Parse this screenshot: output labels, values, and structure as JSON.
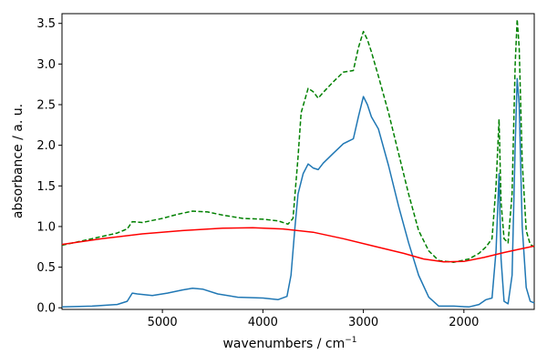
{
  "chart_data": {
    "type": "line",
    "xlabel": "wavenumbers / cm",
    "xlabel_superscript": "−1",
    "ylabel": "absorbance / a. u.",
    "xlim": [
      5999,
      1300
    ],
    "ylim": [
      -0.02,
      3.62
    ],
    "x_reversed": true,
    "x_ticks": [
      5000,
      4000,
      3000,
      2000
    ],
    "y_ticks": [
      0.0,
      0.5,
      1.0,
      1.5,
      2.0,
      2.5,
      3.0,
      3.5
    ],
    "y_tick_labels": [
      "0.0",
      "0.5",
      "1.0",
      "1.5",
      "2.0",
      "2.5",
      "3.0",
      "3.5"
    ],
    "grid": false,
    "series": [
      {
        "color": "#1f77b4",
        "style": "solid",
        "points": [
          [
            5999,
            0.01
          ],
          [
            5700,
            0.02
          ],
          [
            5450,
            0.04
          ],
          [
            5350,
            0.08
          ],
          [
            5300,
            0.18
          ],
          [
            5250,
            0.17
          ],
          [
            5100,
            0.15
          ],
          [
            4950,
            0.18
          ],
          [
            4800,
            0.22
          ],
          [
            4700,
            0.24
          ],
          [
            4600,
            0.23
          ],
          [
            4450,
            0.17
          ],
          [
            4250,
            0.13
          ],
          [
            4000,
            0.12
          ],
          [
            3850,
            0.1
          ],
          [
            3760,
            0.14
          ],
          [
            3720,
            0.4
          ],
          [
            3680,
            1.0
          ],
          [
            3650,
            1.4
          ],
          [
            3600,
            1.65
          ],
          [
            3550,
            1.77
          ],
          [
            3500,
            1.72
          ],
          [
            3450,
            1.7
          ],
          [
            3400,
            1.78
          ],
          [
            3300,
            1.9
          ],
          [
            3200,
            2.02
          ],
          [
            3100,
            2.08
          ],
          [
            3050,
            2.35
          ],
          [
            3000,
            2.6
          ],
          [
            2960,
            2.5
          ],
          [
            2920,
            2.35
          ],
          [
            2850,
            2.2
          ],
          [
            2750,
            1.75
          ],
          [
            2650,
            1.25
          ],
          [
            2550,
            0.8
          ],
          [
            2450,
            0.4
          ],
          [
            2350,
            0.13
          ],
          [
            2250,
            0.02
          ],
          [
            2100,
            0.02
          ],
          [
            1950,
            0.01
          ],
          [
            1850,
            0.04
          ],
          [
            1780,
            0.1
          ],
          [
            1720,
            0.12
          ],
          [
            1680,
            0.7
          ],
          [
            1650,
            1.65
          ],
          [
            1630,
            0.6
          ],
          [
            1600,
            0.08
          ],
          [
            1560,
            0.05
          ],
          [
            1520,
            0.4
          ],
          [
            1490,
            2.0
          ],
          [
            1470,
            2.82
          ],
          [
            1450,
            2.5
          ],
          [
            1420,
            1.0
          ],
          [
            1380,
            0.25
          ],
          [
            1340,
            0.08
          ],
          [
            1300,
            0.06
          ]
        ]
      },
      {
        "color": "#008000",
        "style": "dashed",
        "points": [
          [
            5999,
            0.77
          ],
          [
            5700,
            0.85
          ],
          [
            5450,
            0.92
          ],
          [
            5350,
            0.97
          ],
          [
            5300,
            1.06
          ],
          [
            5200,
            1.05
          ],
          [
            5000,
            1.1
          ],
          [
            4850,
            1.15
          ],
          [
            4700,
            1.19
          ],
          [
            4550,
            1.18
          ],
          [
            4400,
            1.14
          ],
          [
            4200,
            1.1
          ],
          [
            4000,
            1.09
          ],
          [
            3850,
            1.07
          ],
          [
            3750,
            1.03
          ],
          [
            3700,
            1.1
          ],
          [
            3650,
            1.85
          ],
          [
            3620,
            2.4
          ],
          [
            3550,
            2.7
          ],
          [
            3500,
            2.66
          ],
          [
            3450,
            2.58
          ],
          [
            3400,
            2.65
          ],
          [
            3300,
            2.78
          ],
          [
            3200,
            2.9
          ],
          [
            3100,
            2.92
          ],
          [
            3050,
            3.2
          ],
          [
            3000,
            3.4
          ],
          [
            2960,
            3.3
          ],
          [
            2920,
            3.15
          ],
          [
            2850,
            2.85
          ],
          [
            2750,
            2.4
          ],
          [
            2650,
            1.9
          ],
          [
            2550,
            1.4
          ],
          [
            2450,
            0.95
          ],
          [
            2350,
            0.7
          ],
          [
            2250,
            0.58
          ],
          [
            2100,
            0.56
          ],
          [
            1950,
            0.6
          ],
          [
            1850,
            0.67
          ],
          [
            1780,
            0.75
          ],
          [
            1720,
            0.85
          ],
          [
            1680,
            1.5
          ],
          [
            1650,
            2.32
          ],
          [
            1630,
            1.3
          ],
          [
            1600,
            0.85
          ],
          [
            1560,
            0.8
          ],
          [
            1520,
            1.4
          ],
          [
            1490,
            3.0
          ],
          [
            1470,
            3.55
          ],
          [
            1450,
            3.2
          ],
          [
            1420,
            1.8
          ],
          [
            1380,
            0.95
          ],
          [
            1340,
            0.78
          ],
          [
            1300,
            0.75
          ]
        ]
      },
      {
        "color": "#ff0000",
        "style": "solid",
        "points": [
          [
            5999,
            0.78
          ],
          [
            5600,
            0.85
          ],
          [
            5200,
            0.91
          ],
          [
            4800,
            0.95
          ],
          [
            4400,
            0.98
          ],
          [
            4100,
            0.985
          ],
          [
            3800,
            0.97
          ],
          [
            3500,
            0.93
          ],
          [
            3200,
            0.85
          ],
          [
            2900,
            0.76
          ],
          [
            2600,
            0.67
          ],
          [
            2400,
            0.6
          ],
          [
            2200,
            0.565
          ],
          [
            2000,
            0.57
          ],
          [
            1800,
            0.62
          ],
          [
            1600,
            0.68
          ],
          [
            1450,
            0.72
          ],
          [
            1300,
            0.76
          ]
        ]
      }
    ]
  }
}
